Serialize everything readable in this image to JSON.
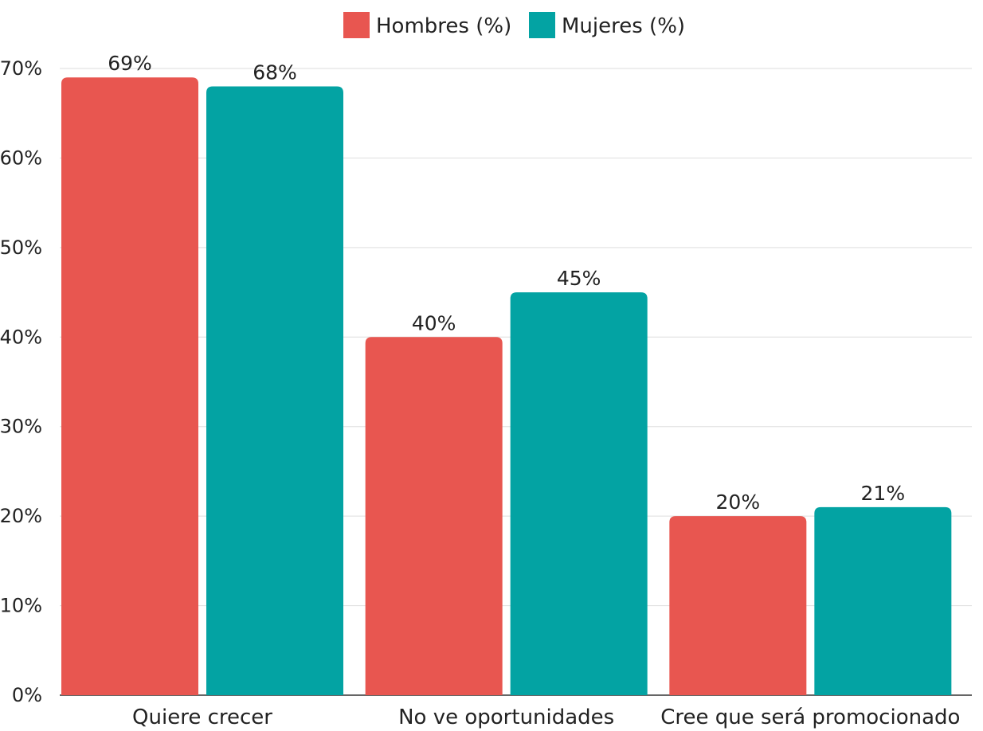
{
  "chart_data": {
    "type": "bar",
    "categories": [
      "Quiere crecer",
      "No ve oportunidades",
      "Cree que será promocionado"
    ],
    "series": [
      {
        "name": "Hombres (%)",
        "values": [
          69,
          40,
          20
        ],
        "color": "#e85650"
      },
      {
        "name": "Mujeres (%)",
        "values": [
          68,
          45,
          21
        ],
        "color": "#03a3a3"
      }
    ],
    "value_labels": [
      [
        "69%",
        "40%",
        "20%"
      ],
      [
        "68%",
        "45%",
        "21%"
      ]
    ],
    "y_ticks": [
      0,
      10,
      20,
      30,
      40,
      50,
      60,
      70
    ],
    "y_tick_labels": [
      "0%",
      "10%",
      "20%",
      "30%",
      "40%",
      "50%",
      "60%",
      "70%"
    ],
    "ylim": [
      0,
      70
    ],
    "grid": true,
    "legend_position": "top-center",
    "title": "",
    "xlabel": "",
    "ylabel": ""
  }
}
